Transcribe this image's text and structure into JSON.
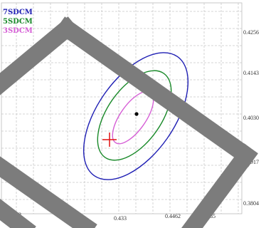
{
  "chart_data": {
    "type": "scatter",
    "title": "",
    "xlabel": "",
    "ylabel": "",
    "x_tick_labels": [
      "0.4092",
      "0.433",
      "0.4462",
      "0.4585"
    ],
    "y_tick_labels": [
      "0.4256",
      "0.4143",
      "0.4030",
      "0.3917",
      "0.3804"
    ],
    "legend": [
      {
        "name": "7SDCM",
        "color": "#1f1fb4"
      },
      {
        "name": "5SDCM",
        "color": "#1a8a2a"
      },
      {
        "name": "3SDCM",
        "color": "#d65fd6"
      }
    ],
    "series": [
      {
        "name": "7SDCM",
        "kind": "ellipse",
        "color": "#1f1fb4"
      },
      {
        "name": "5SDCM",
        "kind": "ellipse",
        "color": "#1a8a2a"
      },
      {
        "name": "3SDCM",
        "kind": "ellipse",
        "color": "#d65fd6"
      }
    ],
    "markers": [
      {
        "kind": "center-dot",
        "color": "#000000"
      },
      {
        "kind": "plus",
        "color": "#e01010"
      }
    ],
    "grid": true,
    "legend_position": "top-left",
    "overlay": "diagonal-gray-bands"
  }
}
